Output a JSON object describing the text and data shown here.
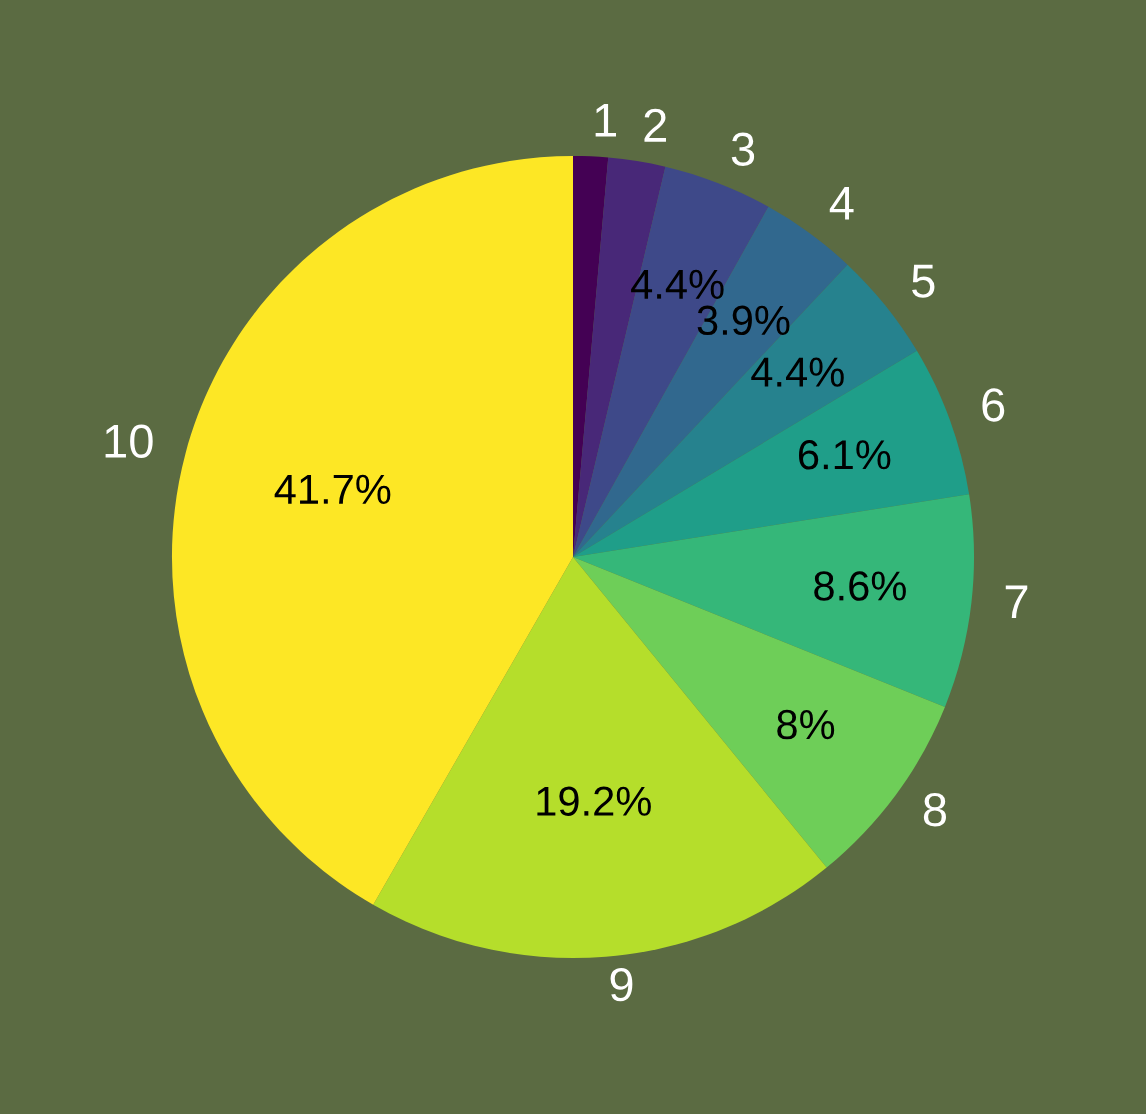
{
  "chart_data": {
    "type": "pie",
    "categories": [
      "1",
      "2",
      "3",
      "4",
      "5",
      "6",
      "7",
      "8",
      "9",
      "10"
    ],
    "values": [
      1.4,
      2.3,
      4.4,
      3.9,
      4.4,
      6.1,
      8.6,
      8,
      19.2,
      41.7
    ],
    "value_labels": [
      null,
      null,
      "4.4%",
      "3.9%",
      "4.4%",
      "6.1%",
      "8.6%",
      "8%",
      "19.2%",
      "41.7%"
    ],
    "colors": [
      "#440154",
      "#482878",
      "#3e4989",
      "#31688e",
      "#26828e",
      "#1f9e89",
      "#35b779",
      "#6ece58",
      "#b5de2b",
      "#fde725"
    ],
    "legend": false
  }
}
